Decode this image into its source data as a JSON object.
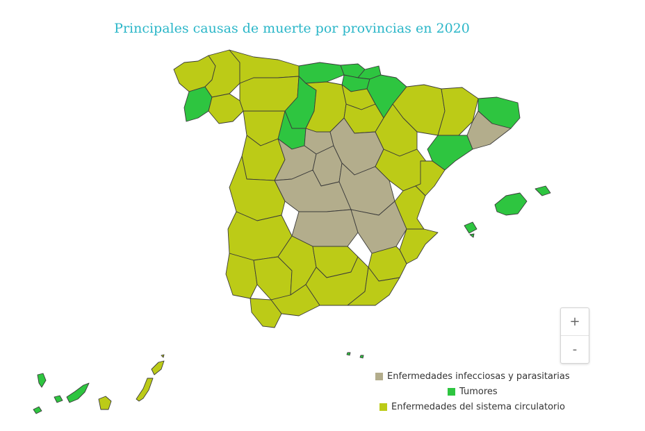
{
  "title": "Principales causas de muerte por provincias en 2020",
  "colors": {
    "infecciosas": "#b3ad8c",
    "tumores": "#2ec540",
    "circulatorio": "#bccb17",
    "border": "#3a3a3a"
  },
  "legend": [
    {
      "label": "Enfermedades infecciosas y parasitarias",
      "color": "#b3ad8c"
    },
    {
      "label": "Tumores",
      "color": "#2ec540"
    },
    {
      "label": "Enfermedades del sistema circulatorio",
      "color": "#bccb17"
    }
  ],
  "zoom": {
    "in": "+",
    "out": "-"
  }
}
